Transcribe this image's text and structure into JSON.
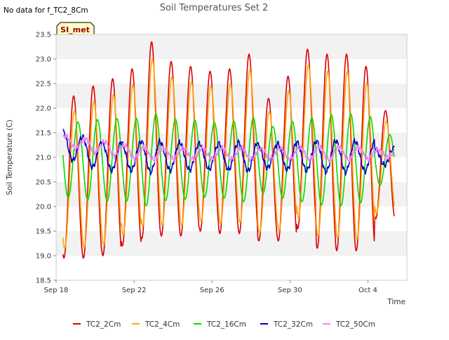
{
  "chart_data": {
    "type": "line",
    "title": "Soil Temperatures Set 2",
    "no_data_note": "No data for f_TC2_8Cm",
    "badge": "SI_met",
    "xlabel": "Time",
    "ylabel": "Soil Temperature (C)",
    "ylim": [
      18.5,
      23.5
    ],
    "y_ticks": [
      18.5,
      19.0,
      19.5,
      20.0,
      20.5,
      21.0,
      21.5,
      22.0,
      22.5,
      23.0,
      23.5
    ],
    "y_tick_labels": [
      "18.5",
      "19.0",
      "19.5",
      "20.0",
      "20.5",
      "21.0",
      "21.5",
      "22.0",
      "22.5",
      "23.0",
      "23.5"
    ],
    "x_range_days": [
      0,
      18
    ],
    "x_ticks": [
      0,
      4,
      8,
      12,
      16
    ],
    "x_tick_labels": [
      "Sep 18",
      "Sep 22",
      "Sep 26",
      "Sep 30",
      "Oct 4"
    ],
    "data_x_range_days": [
      0.35,
      17.35
    ],
    "grid": false,
    "background_bands": true,
    "legend_position": "bottom",
    "colors": {
      "TC2_2Cm": "#dd0000",
      "TC2_4Cm": "#ffa500",
      "TC2_16Cm": "#00dd00",
      "TC2_32Cm": "#0000cc",
      "TC2_50Cm": "#ee82ee"
    },
    "daily_peaks_2cm": [
      22.25,
      22.45,
      22.6,
      22.8,
      23.35,
      22.95,
      22.85,
      22.75,
      22.8,
      23.1,
      22.2,
      22.65,
      23.2,
      23.1,
      23.1,
      22.85,
      21.95
    ],
    "daily_troughs_2cm": [
      19.1,
      18.95,
      19.0,
      19.2,
      19.35,
      19.75,
      19.4,
      19.5,
      19.5,
      19.45,
      19.85,
      19.3,
      19.55,
      19.6,
      19.15,
      19.1,
      19.75,
      20.0
    ],
    "series": [
      {
        "name": "TC2_2Cm",
        "color": "#dd0000",
        "base": 20.8,
        "amp": 1.0,
        "phase": 0.0
      },
      {
        "name": "TC2_4Cm",
        "color": "#ffa500",
        "base": 20.75,
        "amp": 0.85,
        "phase": 0.04
      },
      {
        "name": "TC2_16Cm",
        "color": "#00dd00",
        "base": 20.95,
        "amp": 0.35,
        "phase": 0.22
      },
      {
        "name": "TC2_32Cm",
        "color": "#0000cc",
        "base": 21.02,
        "amp": 0.12,
        "phase": 0.45
      },
      {
        "name": "TC2_50Cm",
        "color": "#ee82ee",
        "base": 21.08,
        "amp": 0.05,
        "phase": 0.6
      }
    ]
  }
}
